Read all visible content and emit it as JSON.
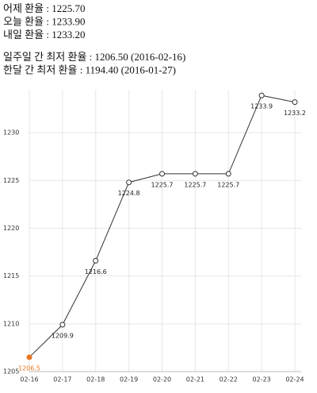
{
  "header": {
    "lines": [
      "어제 환율 : 1225.70",
      "오늘 환율 : 1233.90",
      "내일 환율 : 1233.20"
    ],
    "summary": [
      "일주일 간 최저 환율 : 1206.50 (2016-02-16)",
      "한달 간 최저 환율 : 1194.40 (2016-01-27)"
    ]
  },
  "chart_data": {
    "type": "line",
    "categories": [
      "02-16",
      "02-17",
      "02-18",
      "02-19",
      "02-20",
      "02-21",
      "02-22",
      "02-23",
      "02-24"
    ],
    "values": [
      1206.5,
      1209.9,
      1216.6,
      1224.8,
      1225.7,
      1225.7,
      1225.7,
      1233.9,
      1233.2
    ],
    "color": "#333333",
    "marker_colors": [
      "#e87722",
      "#ffffff",
      "#ffffff",
      "#ffffff",
      "#ffffff",
      "#ffffff",
      "#ffffff",
      "#ffffff",
      "#ffffff"
    ],
    "label_colors": [
      "#e87722",
      "#222222",
      "#222222",
      "#222222",
      "#222222",
      "#222222",
      "#222222",
      "#222222",
      "#222222"
    ],
    "ylim": [
      1205,
      1234.5
    ],
    "yticks": [
      1205,
      1210,
      1215,
      1220,
      1225,
      1230
    ],
    "grid": true
  }
}
